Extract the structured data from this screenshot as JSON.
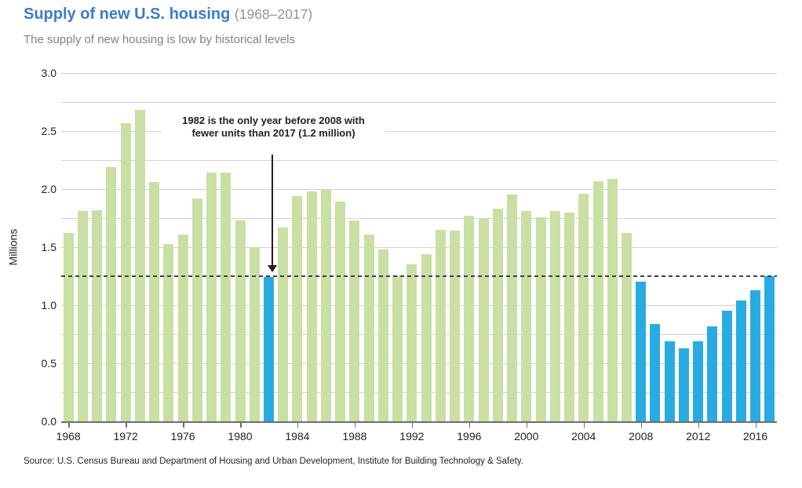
{
  "header": {
    "title": "Supply of new U.S. housing",
    "title_suffix": "(1968–2017)",
    "subtitle": "The supply of new housing is low by historical levels"
  },
  "chart_data": {
    "type": "bar",
    "title": "Supply of new U.S. housing (1968–2017)",
    "subtitle": "The supply of new housing is low by historical levels",
    "xlabel": "",
    "ylabel": "Millions",
    "ylim": [
      0,
      3.0
    ],
    "y_major_ticks": [
      0.0,
      0.5,
      1.0,
      1.5,
      2.0,
      2.5,
      3.0
    ],
    "gridline_interval": 0.25,
    "grid": true,
    "legend": false,
    "x_tick_years": [
      1968,
      1972,
      1976,
      1980,
      1984,
      1988,
      1992,
      1996,
      2000,
      2004,
      2008,
      2012,
      2016
    ],
    "years": [
      1968,
      1969,
      1970,
      1971,
      1972,
      1973,
      1974,
      1975,
      1976,
      1977,
      1978,
      1979,
      1980,
      1981,
      1982,
      1983,
      1984,
      1985,
      1986,
      1987,
      1988,
      1989,
      1990,
      1991,
      1992,
      1993,
      1994,
      1995,
      1996,
      1997,
      1998,
      1999,
      2000,
      2001,
      2002,
      2003,
      2004,
      2005,
      2006,
      2007,
      2008,
      2009,
      2010,
      2011,
      2012,
      2013,
      2014,
      2015,
      2016,
      2017
    ],
    "values": [
      1.62,
      1.81,
      1.82,
      2.19,
      2.57,
      2.68,
      2.06,
      1.53,
      1.61,
      1.92,
      2.14,
      2.14,
      1.73,
      1.5,
      1.24,
      1.67,
      1.94,
      1.98,
      2.0,
      1.89,
      1.73,
      1.61,
      1.48,
      1.26,
      1.35,
      1.44,
      1.65,
      1.64,
      1.77,
      1.75,
      1.83,
      1.95,
      1.81,
      1.76,
      1.81,
      1.8,
      1.96,
      2.07,
      2.09,
      1.62,
      1.2,
      0.84,
      0.69,
      0.63,
      0.69,
      0.82,
      0.95,
      1.04,
      1.13,
      1.25
    ],
    "highlight_years": [
      1982,
      2008,
      2009,
      2010,
      2011,
      2012,
      2013,
      2014,
      2015,
      2016,
      2017
    ],
    "colors": {
      "bar_default": "#c9dfa4",
      "bar_highlight": "#29abe2"
    },
    "reference_line": {
      "value": 1.25,
      "style": "dashed"
    },
    "annotation": {
      "line1": "1982 is the only year before 2008 with",
      "line2": "fewer units than 2017 (1.2 million)",
      "target_year": 1982
    }
  },
  "footer": {
    "source": "Source: U.S. Census Bureau and Department of Housing and Urban Development, Institute for Building Technology & Safety."
  }
}
